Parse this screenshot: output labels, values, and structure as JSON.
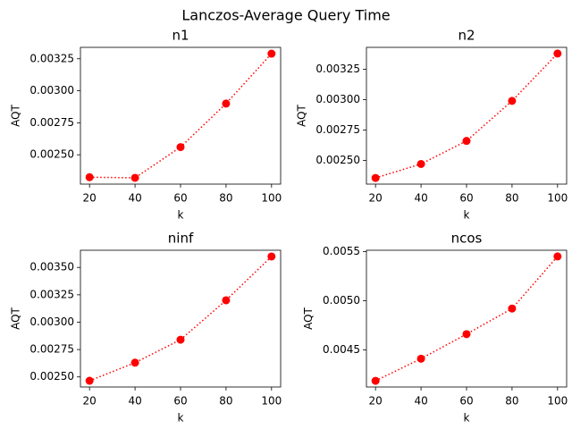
{
  "figure": {
    "suptitle": "Lanczos-Average Query Time"
  },
  "chart_data": [
    {
      "type": "line",
      "title": "n1",
      "xlabel": "k",
      "ylabel": "AQT",
      "x": [
        20,
        40,
        60,
        80,
        100
      ],
      "series": [
        {
          "values": [
            0.002325,
            0.00232,
            0.00256,
            0.0029,
            0.00329
          ],
          "color": "#ff0000",
          "linestyle": "dotted",
          "marker": "circle"
        }
      ],
      "xticks": [
        20,
        40,
        60,
        80,
        100
      ],
      "yticks": [
        0.0025,
        0.00275,
        0.003,
        0.00325
      ],
      "ytick_labels": [
        "0.00250",
        "0.00275",
        "0.00300",
        "0.00325"
      ],
      "xlim": [
        16,
        104
      ],
      "ylim": [
        0.002271,
        0.003339
      ],
      "grid": false
    },
    {
      "type": "line",
      "title": "n2",
      "xlabel": "k",
      "ylabel": "AQT",
      "x": [
        20,
        40,
        60,
        80,
        100
      ],
      "series": [
        {
          "values": [
            0.002355,
            0.00247,
            0.00266,
            0.00299,
            0.00338
          ],
          "color": "#ff0000",
          "linestyle": "dotted",
          "marker": "circle"
        }
      ],
      "xticks": [
        20,
        40,
        60,
        80,
        100
      ],
      "yticks": [
        0.0025,
        0.00275,
        0.003,
        0.00325
      ],
      "ytick_labels": [
        "0.00250",
        "0.00275",
        "0.00300",
        "0.00325"
      ],
      "xlim": [
        16,
        104
      ],
      "ylim": [
        0.002304,
        0.003431
      ],
      "grid": false
    },
    {
      "type": "line",
      "title": "ninf",
      "xlabel": "k",
      "ylabel": "AQT",
      "x": [
        20,
        40,
        60,
        80,
        100
      ],
      "series": [
        {
          "values": [
            0.002465,
            0.00263,
            0.00284,
            0.0032,
            0.0036
          ],
          "color": "#ff0000",
          "linestyle": "dotted",
          "marker": "circle"
        }
      ],
      "xticks": [
        20,
        40,
        60,
        80,
        100
      ],
      "yticks": [
        0.0025,
        0.00275,
        0.003,
        0.00325,
        0.0035
      ],
      "ytick_labels": [
        "0.00250",
        "0.00275",
        "0.00300",
        "0.00325",
        "0.00350"
      ],
      "xlim": [
        16,
        104
      ],
      "ylim": [
        0.002408,
        0.003657
      ],
      "grid": false
    },
    {
      "type": "line",
      "title": "ncos",
      "xlabel": "k",
      "ylabel": "AQT",
      "x": [
        20,
        40,
        60,
        80,
        100
      ],
      "series": [
        {
          "values": [
            0.004185,
            0.00441,
            0.00466,
            0.00492,
            0.00545
          ],
          "color": "#ff0000",
          "linestyle": "dotted",
          "marker": "circle"
        }
      ],
      "xticks": [
        20,
        40,
        60,
        80,
        100
      ],
      "yticks": [
        0.0045,
        0.005,
        0.0055
      ],
      "ytick_labels": [
        "0.0045",
        "0.0050",
        "0.0055"
      ],
      "xlim": [
        16,
        104
      ],
      "ylim": [
        0.004122,
        0.005513
      ],
      "grid": false
    }
  ]
}
